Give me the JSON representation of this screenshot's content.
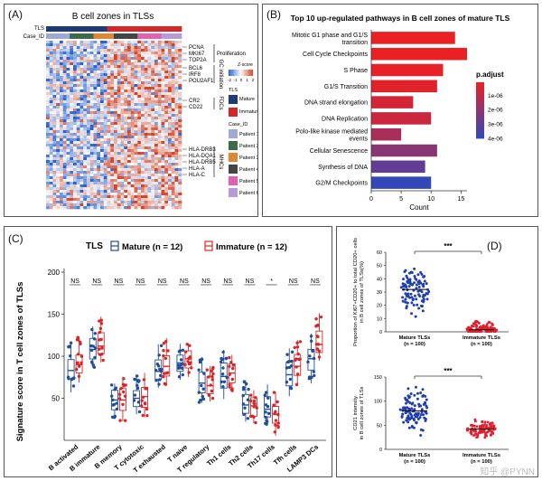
{
  "panelA": {
    "label": "(A)",
    "title": "B cell zones in TLSs",
    "row_tls": "TLS",
    "row_case": "Case_ID",
    "genes": [
      "PCNA",
      "MKI67",
      "TOP2A",
      "BCL6",
      "IRF8",
      "POU2AF1",
      "CR2",
      "CD22",
      "HLA-DRB3",
      "HLA-DQA1",
      "HLA-DRB5",
      "HLA-A",
      "HLA-C"
    ],
    "groups": [
      "Proliferation",
      "GC initiation",
      "FDCs",
      "MHCs"
    ],
    "legend_zscore_title": "Z-score",
    "zscore_ticks": [
      "-2",
      "-1",
      "0",
      "1",
      "2"
    ],
    "legend_tls_title": "TLS",
    "tls_levels": [
      {
        "name": "Mature",
        "color": "#1f3a7a"
      },
      {
        "name": "Immature",
        "color": "#d62728"
      }
    ],
    "legend_case_title": "Case_ID",
    "cases": [
      {
        "name": "Patient 1",
        "color": "#9fa8d8"
      },
      {
        "name": "Patient 2",
        "color": "#3d6b4a"
      },
      {
        "name": "Patient 3",
        "color": "#e3862e"
      },
      {
        "name": "Patient 4",
        "color": "#444444"
      },
      {
        "name": "Patient 5",
        "color": "#e55fb0"
      },
      {
        "name": "Patient 6",
        "color": "#b79ad8"
      }
    ]
  },
  "panelB": {
    "label": "(B)",
    "chart_data": {
      "type": "bar",
      "title": "Top 10 up-regulated pathways in B cell zones of mature TLS",
      "xlabel": "Count",
      "ylabel": "",
      "xlim": [
        0,
        16
      ],
      "xticks": [
        0,
        5,
        10,
        15
      ],
      "categories": [
        "Mitotic G1 phase and G1/S transition",
        "Cell Cycle Checkpoints",
        "S Phase",
        "G1/S Transition",
        "DNA strand elongation",
        "DNA Replication",
        "Polo-like kinase mediated events",
        "Cellular Senescence",
        "Synthesis of DNA",
        "G2/M Checkpoints"
      ],
      "values": [
        14,
        16,
        12,
        11,
        7,
        10,
        5,
        11,
        9,
        10
      ],
      "p_adjust": [
        1e-07,
        1e-07,
        2e-07,
        3e-07,
        6e-07,
        8e-07,
        1.5e-06,
        2.2e-06,
        3e-06,
        4e-06
      ],
      "legend_title": "p.adjust",
      "legend_ticks": [
        "1e-06",
        "2e-06",
        "3e-06",
        "4e-06"
      ]
    }
  },
  "panelC": {
    "label": "(C)",
    "chart_data": {
      "type": "box",
      "legend_title": "TLS",
      "series": [
        {
          "name": "Mature (n = 12)",
          "color": "#1f4e9a"
        },
        {
          "name": "Immature (n = 12)",
          "color": "#d62728"
        }
      ],
      "ylabel": "Signature score in T cell zones of TLSs",
      "ylim": [
        0,
        200
      ],
      "yticks": [
        50,
        100,
        150,
        200
      ],
      "categories": [
        "B activated",
        "B immature",
        "B memory",
        "T cytotoxic",
        "T exhausted",
        "T naive",
        "T regulatory",
        "Th1 cells",
        "Th2 cells",
        "Th17 cells",
        "Tfh cells",
        "LAMP3 DCs"
      ],
      "significance": [
        "NS",
        "NS",
        "NS",
        "NS",
        "NS",
        "NS",
        "NS",
        "NS",
        "NS",
        "*",
        "NS",
        "NS"
      ],
      "mature_medians": [
        83,
        108,
        48,
        50,
        82,
        92,
        68,
        76,
        42,
        37,
        78,
        97
      ],
      "immature_medians": [
        90,
        112,
        48,
        52,
        88,
        97,
        65,
        80,
        41,
        31,
        88,
        114
      ]
    }
  },
  "panelD": {
    "label": "(D)",
    "top": {
      "chart_data": {
        "type": "scatter",
        "ylabel": "Proportion of Ki67+CD20+ to total CD20+ cells in B cell zones of TLSs(%)",
        "categories": [
          "Mature TLSs (n = 100)",
          "Immature TLSs (n = 100)"
        ],
        "ylim": [
          0,
          60
        ],
        "yticks": [
          "0",
          "10",
          "20",
          "30",
          "40",
          "50",
          "60"
        ],
        "means": [
          32,
          1.5
        ],
        "significance": "***"
      }
    },
    "bottom": {
      "chart_data": {
        "type": "scatter",
        "ylabel": "CD21 intensity in B cell zones of TLSs",
        "categories": [
          "Mature TLSs (n = 100)",
          "Immature TLSs (n = 100)"
        ],
        "ylim": [
          0,
          150
        ],
        "yticks": [
          "0",
          "50",
          "100",
          "150"
        ],
        "means": [
          80,
          42
        ],
        "significance": "***"
      }
    }
  },
  "watermark": "知乎 @PYNN"
}
